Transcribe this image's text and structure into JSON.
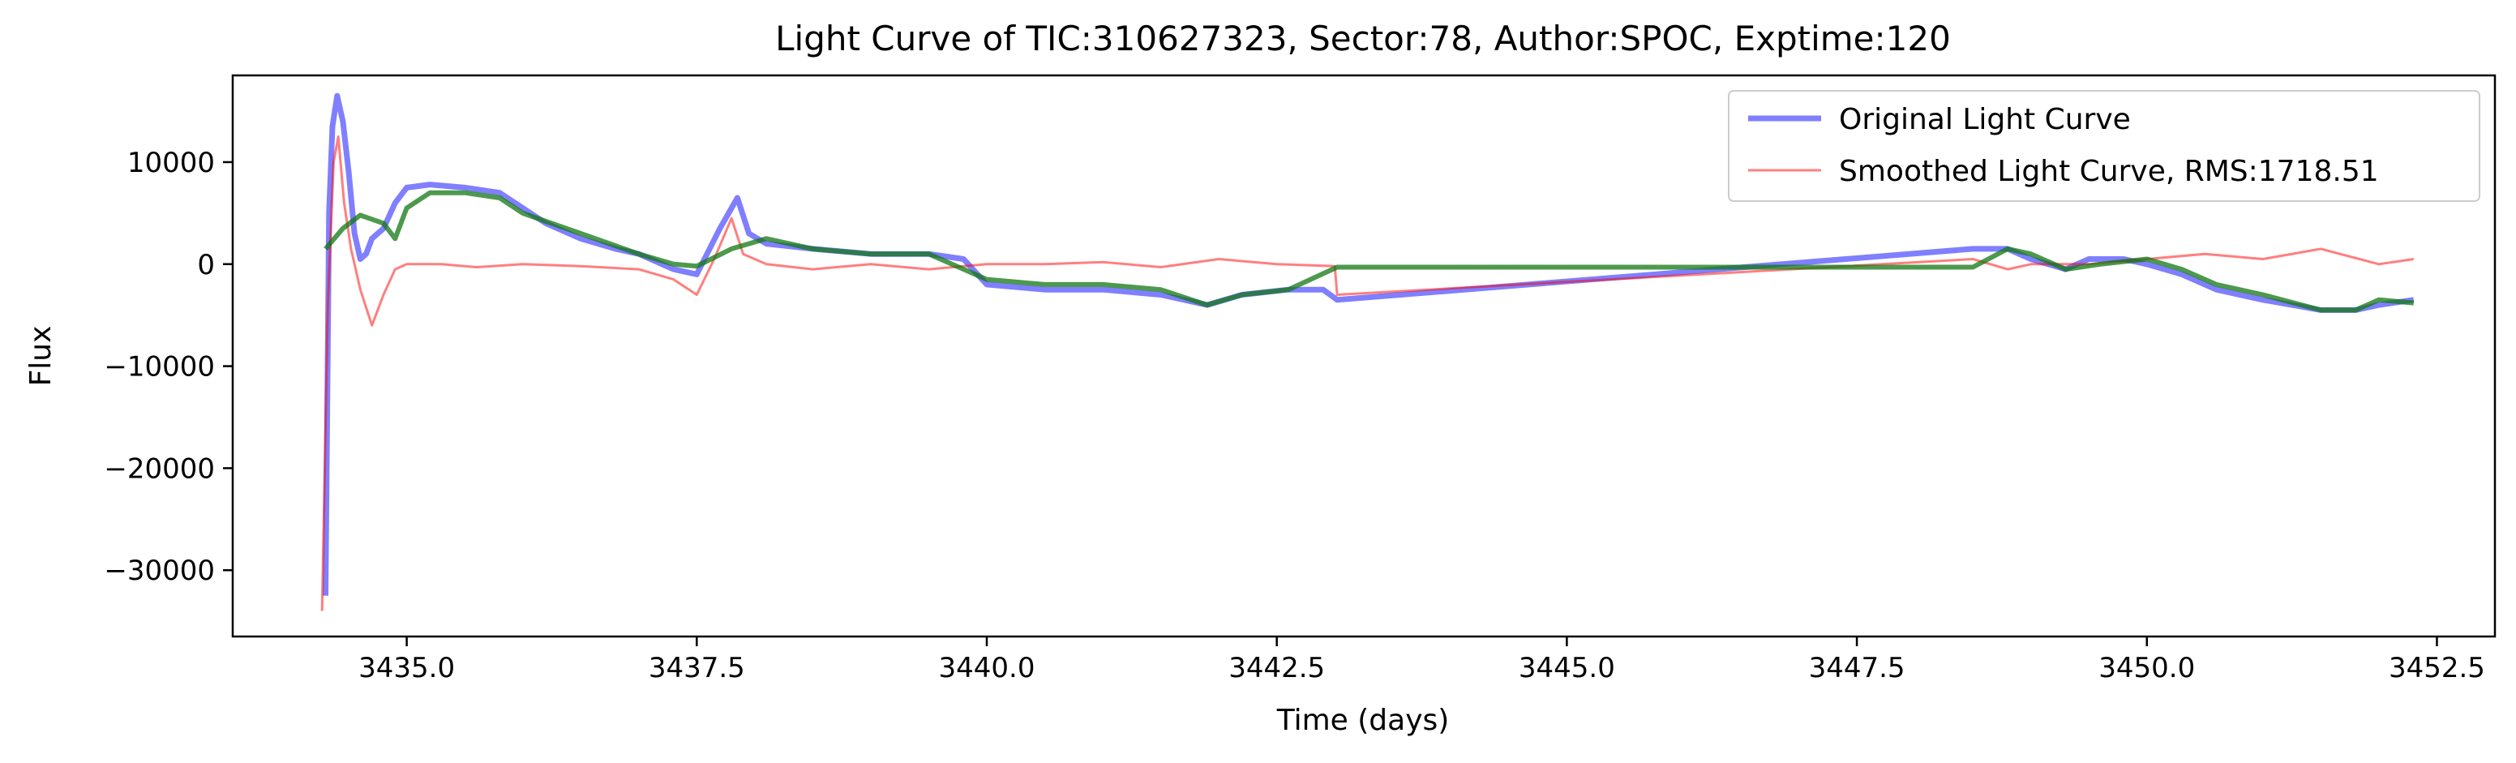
{
  "chart_data": {
    "type": "line",
    "title": "Light Curve of TIC:310627323, Sector:78, Author:SPOC, Exptime:120",
    "xlabel": "Time (days)",
    "ylabel": "Flux",
    "xlim": [
      3433.5,
      3453.0
    ],
    "ylim": [
      -36500,
      18500
    ],
    "xticks": [
      3435.0,
      3437.5,
      3440.0,
      3442.5,
      3445.0,
      3447.5,
      3450.0,
      3452.5
    ],
    "xtick_labels": [
      "3435.0",
      "3437.5",
      "3440.0",
      "3442.5",
      "3445.0",
      "3447.5",
      "3450.0",
      "3452.5"
    ],
    "yticks": [
      10000,
      0,
      -10000,
      -20000,
      -30000
    ],
    "ytick_labels": [
      "10000",
      "0",
      "−10000",
      "−20000",
      "−30000"
    ],
    "grid": false,
    "legend_position": "top-right",
    "series": [
      {
        "name": "Original Light Curve",
        "color": "#0000ff",
        "opacity": 0.5,
        "x": [
          3434.3,
          3434.33,
          3434.36,
          3434.4,
          3434.45,
          3434.5,
          3434.55,
          3434.6,
          3434.65,
          3434.7,
          3434.8,
          3434.9,
          3435.0,
          3435.2,
          3435.5,
          3435.8,
          3436.0,
          3436.2,
          3436.5,
          3436.8,
          3437.0,
          3437.3,
          3437.5,
          3437.7,
          3437.85,
          3437.95,
          3438.1,
          3438.5,
          3439.0,
          3439.5,
          3439.8,
          3440.0,
          3440.5,
          3441.0,
          3441.5,
          3441.9,
          3442.2,
          3442.6,
          3442.9,
          3443.02,
          3448.5,
          3448.8,
          3449.0,
          3449.3,
          3449.5,
          3449.8,
          3450.0,
          3450.3,
          3450.6,
          3451.0,
          3451.5,
          3451.8,
          3452.0,
          3452.3
        ],
        "values": [
          -32500,
          5000,
          13500,
          16500,
          14000,
          9000,
          3000,
          500,
          1000,
          2500,
          3500,
          6000,
          7500,
          7800,
          7500,
          7000,
          5500,
          4000,
          2500,
          1500,
          1000,
          -500,
          -1000,
          3500,
          6500,
          3000,
          2000,
          1500,
          1000,
          1000,
          500,
          -2000,
          -2500,
          -2500,
          -3000,
          -4000,
          -3000,
          -2500,
          -2500,
          -3500,
          1500,
          1500,
          500,
          -500,
          500,
          500,
          0,
          -1000,
          -2500,
          -3500,
          -4500,
          -4500,
          -4000,
          -3500
        ]
      },
      {
        "name": "Smoothed Light Curve, RMS:1718.51",
        "color": "#ff0000",
        "opacity": 0.5,
        "x": [
          3434.27,
          3434.32,
          3434.37,
          3434.41,
          3434.46,
          3434.52,
          3434.6,
          3434.7,
          3434.8,
          3434.9,
          3435.0,
          3435.3,
          3435.6,
          3436.0,
          3436.5,
          3437.0,
          3437.3,
          3437.5,
          3437.65,
          3437.8,
          3437.9,
          3438.1,
          3438.5,
          3439.0,
          3439.5,
          3440.0,
          3440.5,
          3441.0,
          3441.5,
          3442.0,
          3442.5,
          3443.0,
          3443.02,
          3448.5,
          3448.8,
          3449.0,
          3449.5,
          3450.0,
          3450.5,
          3451.0,
          3451.5,
          3452.0,
          3452.3
        ],
        "values": [
          -34000,
          -4000,
          10000,
          12500,
          6000,
          1500,
          -2500,
          -6000,
          -3000,
          -500,
          0,
          0,
          -300,
          0,
          -200,
          -500,
          -1500,
          -3000,
          500,
          4500,
          1000,
          0,
          -500,
          0,
          -500,
          0,
          0,
          200,
          -300,
          500,
          0,
          -200,
          -3000,
          500,
          -500,
          0,
          0,
          500,
          1000,
          500,
          1500,
          0,
          500
        ]
      },
      {
        "name": "",
        "color": "#117711",
        "opacity": 0.75,
        "x": [
          3434.3,
          3434.45,
          3434.6,
          3434.8,
          3434.9,
          3435.0,
          3435.2,
          3435.5,
          3435.8,
          3436.0,
          3436.5,
          3437.0,
          3437.3,
          3437.5,
          3437.8,
          3438.1,
          3438.5,
          3439.0,
          3439.5,
          3440.0,
          3440.5,
          3441.0,
          3441.5,
          3441.9,
          3442.2,
          3442.6,
          3443.02,
          3448.5,
          3448.8,
          3449.0,
          3449.3,
          3449.6,
          3450.0,
          3450.3,
          3450.6,
          3451.0,
          3451.5,
          3451.8,
          3452.0,
          3452.3
        ],
        "values": [
          1500,
          3500,
          4800,
          4000,
          2500,
          5500,
          7000,
          7000,
          6500,
          5000,
          3000,
          1000,
          0,
          -200,
          1500,
          2500,
          1500,
          1000,
          1000,
          -1500,
          -2000,
          -2000,
          -2500,
          -4000,
          -3000,
          -2500,
          -300,
          -300,
          1500,
          1000,
          -500,
          0,
          500,
          -500,
          -2000,
          -3000,
          -4500,
          -4500,
          -3500,
          -3800
        ]
      }
    ]
  }
}
